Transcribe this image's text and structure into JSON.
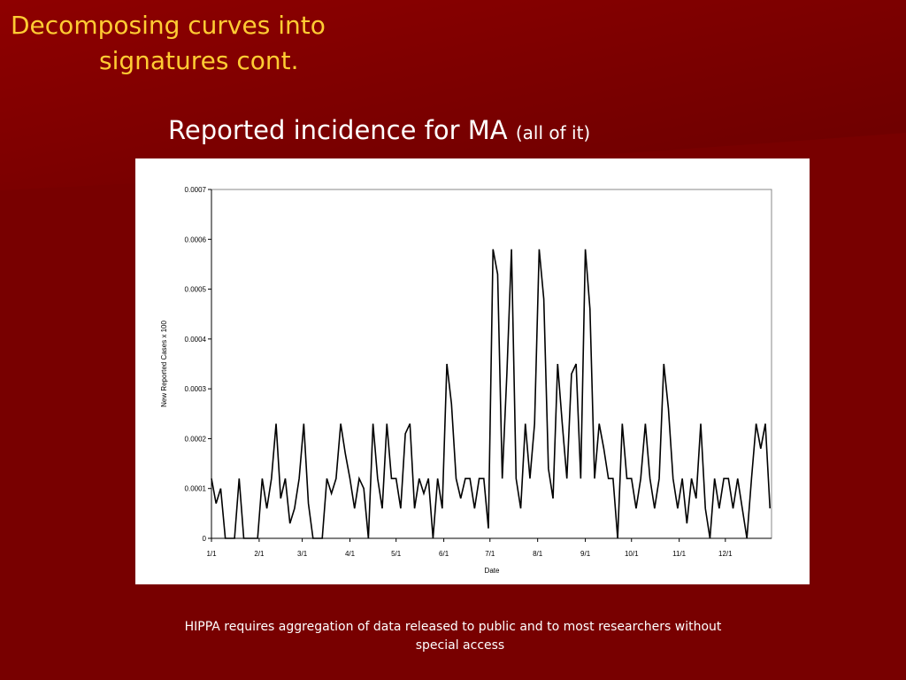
{
  "slide": {
    "title_line1": "Decomposing curves into",
    "title_line2": "signatures cont.",
    "heading": "Reported incidence for MA",
    "heading_note": "(all of it)",
    "caption_line1": "HIPPA requires aggregation of data released to public and to most researchers without",
    "caption_line2": "special access"
  },
  "chart_data": {
    "type": "line",
    "x_label": "Date",
    "y_label": "New Reported Cases x 100",
    "x": [
      0,
      3,
      6,
      9,
      12,
      15,
      18,
      21,
      24,
      27,
      30,
      33,
      36,
      39,
      42,
      45,
      48,
      51,
      54,
      57,
      60,
      63,
      66,
      69,
      72,
      75,
      78,
      81,
      84,
      87,
      90,
      93,
      96,
      99,
      102,
      105,
      108,
      111,
      114,
      117,
      120,
      123,
      126,
      129,
      132,
      135,
      138,
      141,
      144,
      147,
      150,
      153,
      156,
      159,
      162,
      165,
      168,
      171,
      174,
      177,
      180,
      183,
      186,
      189,
      192,
      195,
      198,
      201,
      204,
      207,
      210,
      213,
      216,
      219,
      222,
      225,
      228,
      231,
      234,
      237,
      240,
      243,
      246,
      249,
      252,
      255,
      258,
      261,
      264,
      267,
      270,
      273,
      276,
      279,
      282,
      285,
      288,
      291,
      294,
      297,
      300,
      303,
      306,
      309,
      312,
      315,
      318,
      321,
      324,
      327,
      330,
      333,
      336,
      339,
      342,
      345,
      348,
      351,
      354,
      357,
      360,
      363
    ],
    "series": [
      {
        "name": "MA",
        "color": "#000000",
        "values": [
          0.00012,
          7e-05,
          0.0001,
          0,
          0,
          0,
          0.00012,
          0,
          0,
          0,
          0,
          0.00012,
          6e-05,
          0.00012,
          0.00023,
          8e-05,
          0.00012,
          3e-05,
          6e-05,
          0.00012,
          0.00023,
          7e-05,
          0,
          0,
          0,
          0.00012,
          9e-05,
          0.00012,
          0.00023,
          0.00017,
          0.00012,
          6e-05,
          0.00012,
          0.0001,
          0,
          0.00023,
          0.00012,
          6e-05,
          0.00023,
          0.00012,
          0.00012,
          6e-05,
          0.00021,
          0.00023,
          6e-05,
          0.00012,
          9e-05,
          0.00012,
          0,
          0.00012,
          6e-05,
          0.00035,
          0.00027,
          0.00012,
          8e-05,
          0.00012,
          0.00012,
          6e-05,
          0.00012,
          0.00012,
          2e-05,
          0.00058,
          0.00053,
          0.00012,
          0.00033,
          0.00058,
          0.00012,
          6e-05,
          0.00023,
          0.00012,
          0.00023,
          0.00058,
          0.00048,
          0.00014,
          8e-05,
          0.00035,
          0.00023,
          0.00012,
          0.00033,
          0.00035,
          0.00012,
          0.00058,
          0.00046,
          0.00012,
          0.00023,
          0.00018,
          0.00012,
          0.00012,
          0,
          0.00023,
          0.00012,
          0.00012,
          6e-05,
          0.00012,
          0.00023,
          0.00012,
          6e-05,
          0.00012,
          0.00035,
          0.00026,
          0.00012,
          6e-05,
          0.00012,
          3e-05,
          0.00012,
          8e-05,
          0.00023,
          6e-05,
          0,
          0.00012,
          6e-05,
          0.00012,
          0.00012,
          6e-05,
          0.00012,
          6e-05,
          0,
          0.00012,
          0.00023,
          0.00018,
          0.00023,
          6e-05
        ]
      }
    ],
    "xlim": [
      0,
      364
    ],
    "xticks": [
      {
        "value": 0,
        "label": "1/1"
      },
      {
        "value": 31,
        "label": "2/1"
      },
      {
        "value": 59,
        "label": "3/1"
      },
      {
        "value": 90,
        "label": "4/1"
      },
      {
        "value": 120,
        "label": "5/1"
      },
      {
        "value": 151,
        "label": "6/1"
      },
      {
        "value": 181,
        "label": "7/1"
      },
      {
        "value": 212,
        "label": "8/1"
      },
      {
        "value": 243,
        "label": "9/1"
      },
      {
        "value": 273,
        "label": "10/1"
      },
      {
        "value": 304,
        "label": "11/1"
      },
      {
        "value": 334,
        "label": "12/1"
      }
    ],
    "ylim": [
      0,
      0.0007
    ],
    "yticks": [
      0,
      0.0001,
      0.0002,
      0.0003,
      0.0004,
      0.0005,
      0.0006,
      0.0007
    ]
  }
}
